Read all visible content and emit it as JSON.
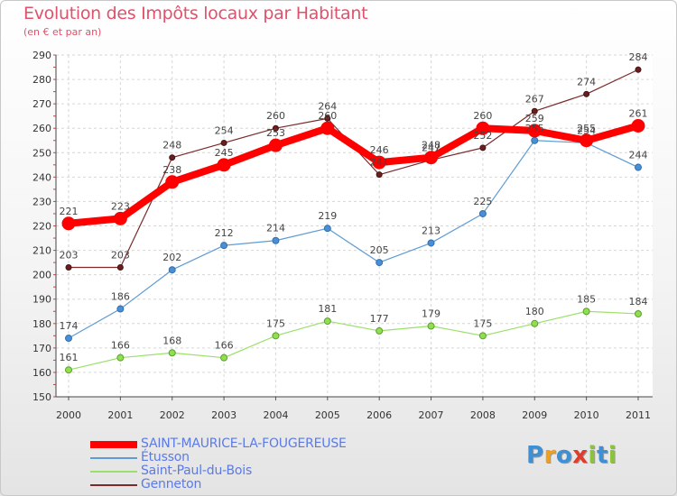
{
  "title": "Evolution des Impôts locaux par Habitant",
  "subtitle": "(en € et par an)",
  "logo": {
    "text": "Proxiti",
    "colors": [
      "#3d8fd6",
      "#f0a020",
      "#3d8fd6",
      "#e03c2c",
      "#8ac43a",
      "#3d8fd6",
      "#8ac43a"
    ]
  },
  "chart_data": {
    "type": "line",
    "x": [
      "2000",
      "2001",
      "2002",
      "2003",
      "2004",
      "2005",
      "2006",
      "2007",
      "2008",
      "2009",
      "2010",
      "2011"
    ],
    "ylim": [
      150,
      290
    ],
    "yticks": [
      "150",
      "160",
      "170",
      "180",
      "190",
      "200",
      "210",
      "220",
      "230",
      "240",
      "250",
      "260",
      "270",
      "280",
      "290"
    ],
    "grid": true,
    "legend_position": "bottom",
    "series": [
      {
        "name": "SAINT-MAURICE-LA-FOUGEREUSE",
        "color": "#ff0000",
        "values": [
          221,
          223,
          238,
          245,
          253,
          260,
          246,
          248,
          260,
          259,
          255,
          261
        ]
      },
      {
        "name": "Étusson",
        "color": "#5f9bd4",
        "values": [
          174,
          186,
          202,
          212,
          214,
          219,
          205,
          213,
          225,
          255,
          254,
          244
        ]
      },
      {
        "name": "Saint-Paul-du-Bois",
        "color": "#9be06a",
        "values": [
          161,
          166,
          168,
          166,
          175,
          181,
          177,
          179,
          175,
          180,
          185,
          184
        ]
      },
      {
        "name": "Genneton",
        "color": "#7a2a2a",
        "values": [
          203,
          203,
          248,
          254,
          260,
          264,
          241,
          247,
          252,
          267,
          274,
          284
        ]
      }
    ]
  }
}
